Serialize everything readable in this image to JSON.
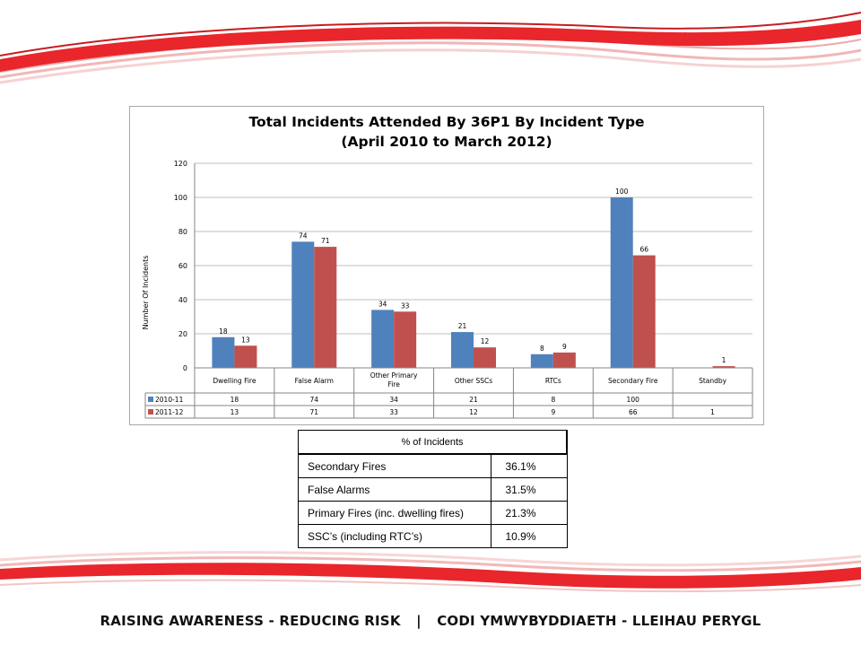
{
  "chart_data": {
    "type": "bar",
    "title": "Total Incidents Attended By 36P1 By Incident Type",
    "subtitle": "(April 2010 to March 2012)",
    "ylabel": "Number Of Incidents",
    "xlabel": "",
    "ylim": [
      0,
      120
    ],
    "yticks": [
      0,
      20,
      40,
      60,
      80,
      100,
      120
    ],
    "grid": true,
    "legend": "data-table",
    "categories": [
      "Dwelling Fire",
      "False Alarm",
      "Other Primary Fire",
      "Other SSCs",
      "RTCs",
      "Secondary Fire",
      "Standby"
    ],
    "series": [
      {
        "name": "2010-11",
        "color": "#4f81bd",
        "values": [
          18,
          74,
          34,
          21,
          8,
          100,
          null
        ]
      },
      {
        "name": "2011-12",
        "color": "#c0504d",
        "values": [
          13,
          71,
          33,
          12,
          9,
          66,
          1
        ]
      }
    ]
  },
  "pct_table": {
    "header": "% of Incidents",
    "rows": [
      {
        "label": "Secondary Fires",
        "value": "36.1%"
      },
      {
        "label": "False Alarms",
        "value": "31.5%"
      },
      {
        "label": "Primary Fires (inc. dwelling fires)",
        "value": "21.3%"
      },
      {
        "label": "SSC’s (including RTC’s)",
        "value": "10.9%"
      }
    ]
  },
  "footer": {
    "left": "RAISING AWARENESS - REDUCING RISK",
    "separator": "|",
    "right": "CODI YMWYBYDDIAETH - LLEIHAU PERYGL"
  },
  "colors": {
    "wave_red": "#e8262b",
    "wave_pink": "#f4c0c0"
  }
}
